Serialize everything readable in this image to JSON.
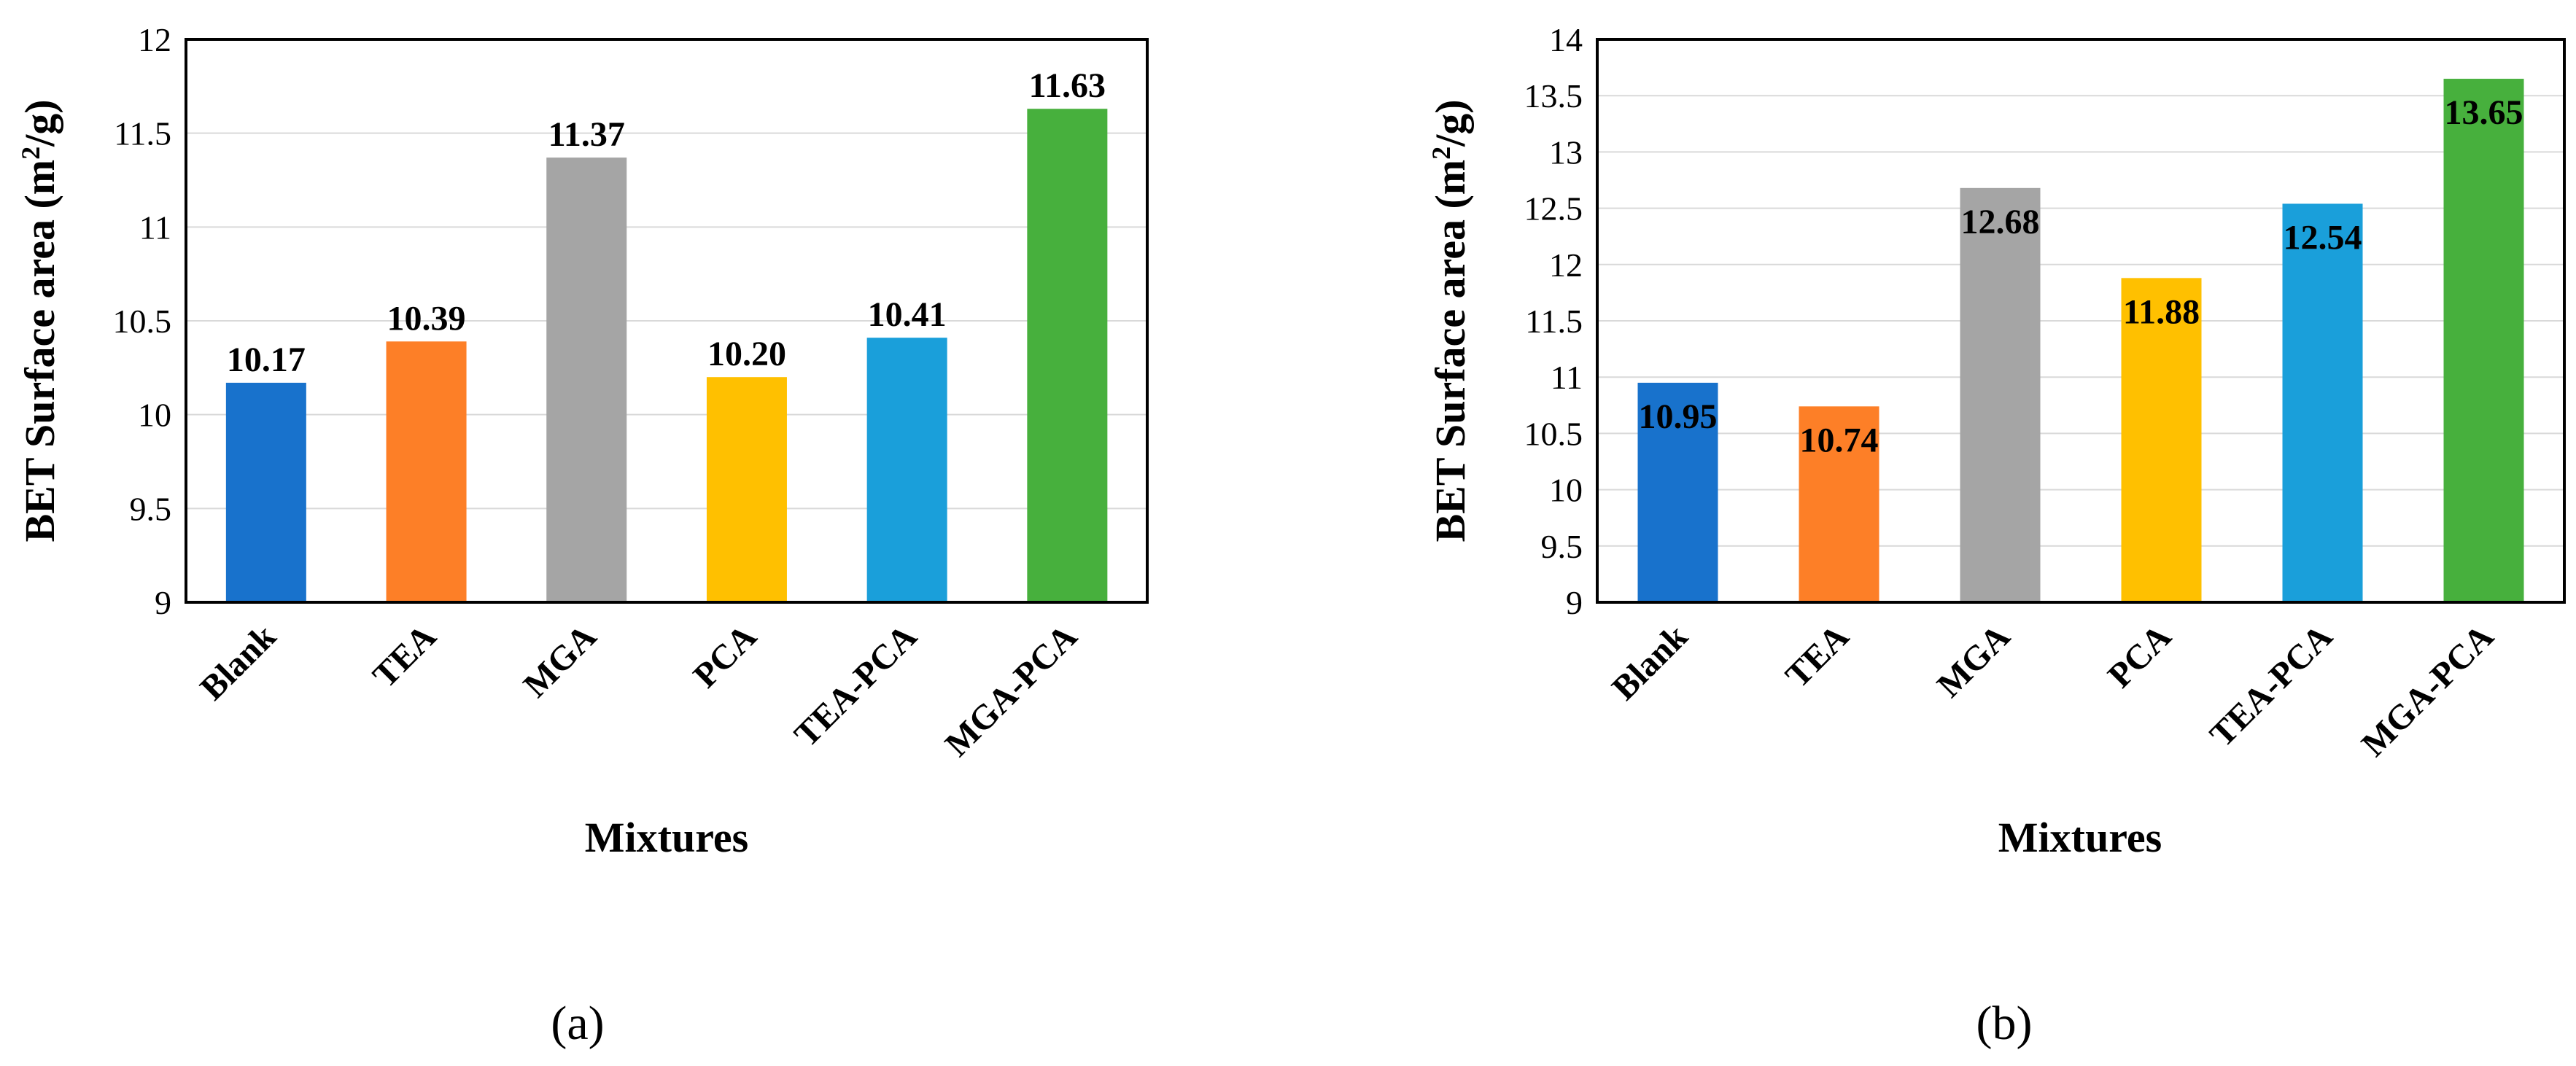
{
  "chart_data": [
    {
      "type": "bar",
      "panel_label": "(a)",
      "title": "",
      "xlabel": "Mixtures",
      "ylabel": "BET Surface area (m²/g)",
      "ylabel_parts": {
        "before": "BET Surface area (m",
        "sup": "2",
        "after": "/g)"
      },
      "categories": [
        "Blank",
        "TEA",
        "MGA",
        "PCA",
        "TEA-PCA",
        "MGA-PCA"
      ],
      "values": [
        10.17,
        10.39,
        11.37,
        10.2,
        10.41,
        11.63
      ],
      "data_labels": [
        "10.17",
        "10.39",
        "11.37",
        "10.20",
        "10.41",
        "11.63"
      ],
      "label_position": "above",
      "colors": [
        "#1872CC",
        "#FD7F27",
        "#A5A5A5",
        "#FFC000",
        "#1A9FDA",
        "#47B03D"
      ],
      "ylim": [
        9,
        12
      ],
      "yticks": [
        "9",
        "9.5",
        "10",
        "10.5",
        "11",
        "11.5",
        "12"
      ],
      "grid": true,
      "legend": "none"
    },
    {
      "type": "bar",
      "panel_label": "(b)",
      "title": "",
      "xlabel": "Mixtures",
      "ylabel": "BET Surface area (m²/g)",
      "ylabel_parts": {
        "before": "BET Surface area (m",
        "sup": "2",
        "after": "/g)"
      },
      "categories": [
        "Blank",
        "TEA",
        "MGA",
        "PCA",
        "TEA-PCA",
        "MGA-PCA"
      ],
      "values": [
        10.95,
        10.74,
        12.68,
        11.88,
        12.54,
        13.65
      ],
      "data_labels": [
        "10.95",
        "10.74",
        "12.68",
        "11.88",
        "12.54",
        "13.65"
      ],
      "label_position": "inside-top",
      "colors": [
        "#1872CC",
        "#FD7F27",
        "#A5A5A5",
        "#FFC000",
        "#1A9FDA",
        "#47B03D"
      ],
      "ylim": [
        9,
        14
      ],
      "yticks": [
        "9",
        "9.5",
        "10",
        "10.5",
        "11",
        "11.5",
        "12",
        "12.5",
        "13",
        "13.5",
        "14"
      ],
      "grid": true,
      "legend": "none"
    }
  ]
}
